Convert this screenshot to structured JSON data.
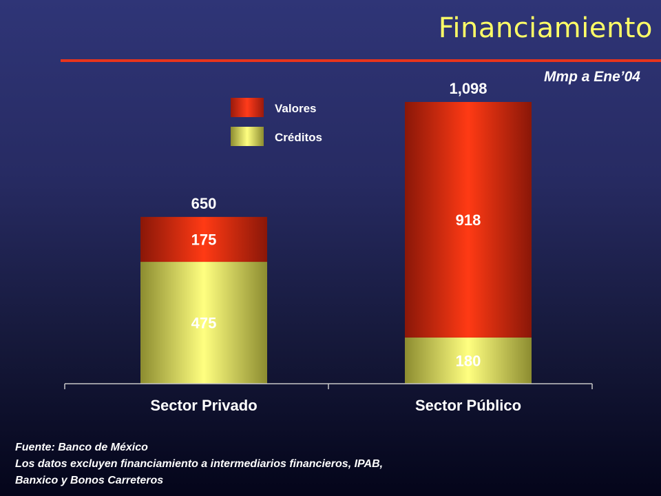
{
  "title": "Financiamiento",
  "subtitle": "Mmp a Ene’04",
  "colors": {
    "title": "#ffff66",
    "rule": "#e8341c",
    "valores": "#e8341c",
    "creditos": "#e6e65c"
  },
  "chart_data": {
    "type": "bar",
    "stacked": true,
    "categories": [
      "Sector Privado",
      "Sector Público"
    ],
    "series": [
      {
        "name": "Créditos",
        "values": [
          475,
          180
        ]
      },
      {
        "name": "Valores",
        "values": [
          175,
          918
        ]
      }
    ],
    "totals": [
      "650",
      "1,098"
    ],
    "ylim": [
      0,
      1098
    ],
    "legend_position": "top-center"
  },
  "source": {
    "line1": "Fuente: Banco de México",
    "line2": "Los datos excluyen financiamiento a intermediarios financieros, IPAB,",
    "line3": "Banxico y Bonos Carreteros"
  }
}
